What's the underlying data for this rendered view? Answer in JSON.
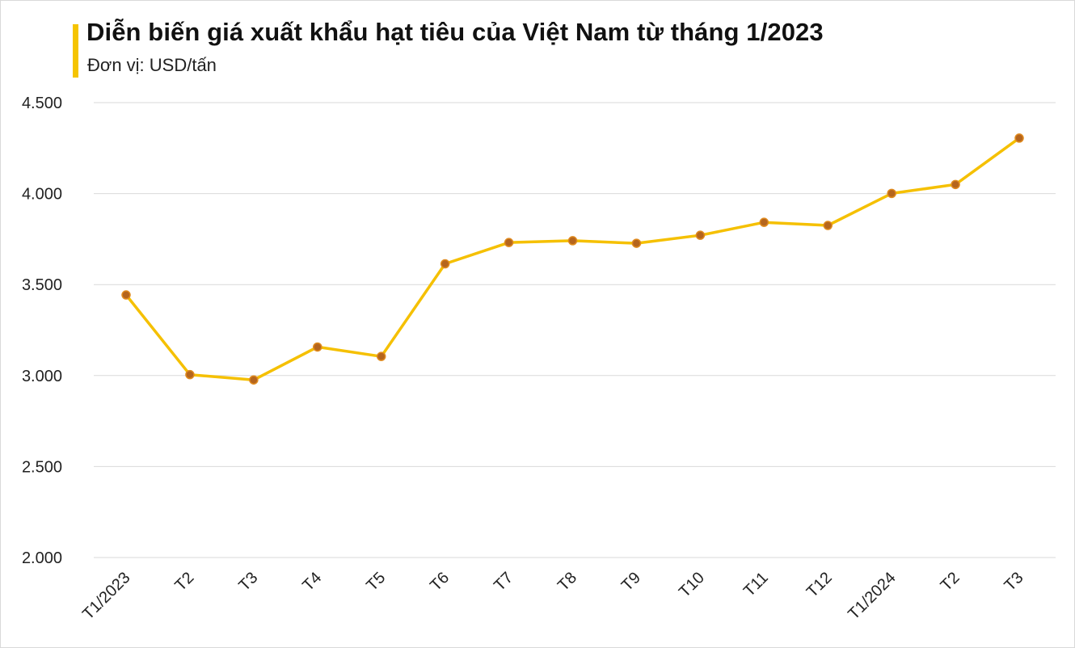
{
  "chart_data": {
    "type": "line",
    "title": "Diễn biến giá xuất khẩu hạt tiêu của Việt Nam từ tháng 1/2023",
    "subtitle": "Đơn vị: USD/tấn",
    "categories": [
      "T1/2023",
      "T2",
      "T3",
      "T4",
      "T5",
      "T6",
      "T7",
      "T8",
      "T9",
      "T10",
      "T11",
      "T12",
      "T1/2024",
      "T2",
      "T3"
    ],
    "series": [
      {
        "values": [
          3443,
          3005,
          2976,
          3157,
          3105,
          3614,
          3731,
          3741,
          3727,
          3771,
          3842,
          3825,
          4001,
          4050,
          4305
        ]
      }
    ],
    "yticks": [
      "2.000",
      "2.500",
      "3.000",
      "3.500",
      "4.000",
      "4.500"
    ],
    "ytick_values": [
      2000,
      2500,
      3000,
      3500,
      4000,
      4500
    ],
    "ylim": [
      2000,
      4500
    ],
    "grid": true,
    "legend": "none",
    "colors": {
      "line": "#f5c000",
      "marker_fill": "#b5651d",
      "marker_stroke": "#e08a1e",
      "grid": "#d9d9d9",
      "accent": "#f5c400"
    }
  }
}
